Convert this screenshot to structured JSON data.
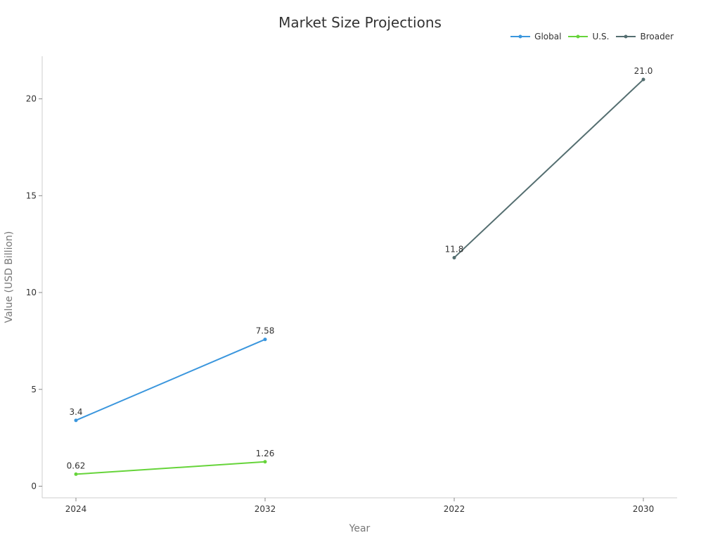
{
  "chart_data": {
    "type": "line",
    "title": "Market Size Projections",
    "xlabel": "Year",
    "ylabel": "Value (USD Billion)",
    "categories": [
      "2024",
      "2032",
      "2022",
      "2030"
    ],
    "ylim": [
      -0.6,
      22.2
    ],
    "yticks": [
      0,
      5,
      10,
      15,
      20
    ],
    "legend_position": "top-right",
    "grid": false,
    "series": [
      {
        "name": "Global",
        "color": "#3a96dd",
        "x": [
          "2024",
          "2032"
        ],
        "values": [
          3.4,
          7.58
        ],
        "labels": [
          "3.4",
          "7.58"
        ]
      },
      {
        "name": "U.S.",
        "color": "#66d43a",
        "x": [
          "2024",
          "2032"
        ],
        "values": [
          0.62,
          1.26
        ],
        "labels": [
          "0.62",
          "1.26"
        ]
      },
      {
        "name": "Broader",
        "color": "#546e70",
        "x": [
          "2022",
          "2030"
        ],
        "values": [
          11.8,
          21.0
        ],
        "labels": [
          "11.8",
          "21.0"
        ]
      }
    ]
  }
}
